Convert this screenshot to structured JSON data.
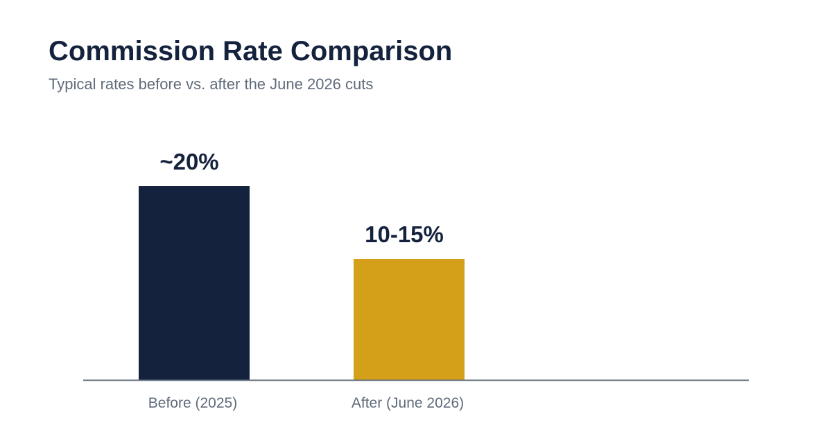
{
  "header": {
    "title": "Commission Rate Comparison",
    "subtitle": "Typical rates before vs. after the June 2026 cuts"
  },
  "colors": {
    "title": "#15223d",
    "subtitle": "#5f6b7a",
    "axis": "#5f6b7a",
    "bar_label": "#15223d"
  },
  "chart_data": {
    "type": "bar",
    "title": "Commission Rate Comparison",
    "subtitle": "Typical rates before vs. after the June 2026 cuts",
    "categories": [
      "Before (2025)",
      "After (June 2026)"
    ],
    "values": [
      20,
      12.5
    ],
    "data_labels": [
      "~20%",
      "10-15%"
    ],
    "bar_colors": [
      "#15223d",
      "#d4a01a"
    ],
    "xlabel": "",
    "ylabel": "",
    "ylim": [
      0,
      25
    ],
    "grid": false,
    "legend": "none"
  }
}
